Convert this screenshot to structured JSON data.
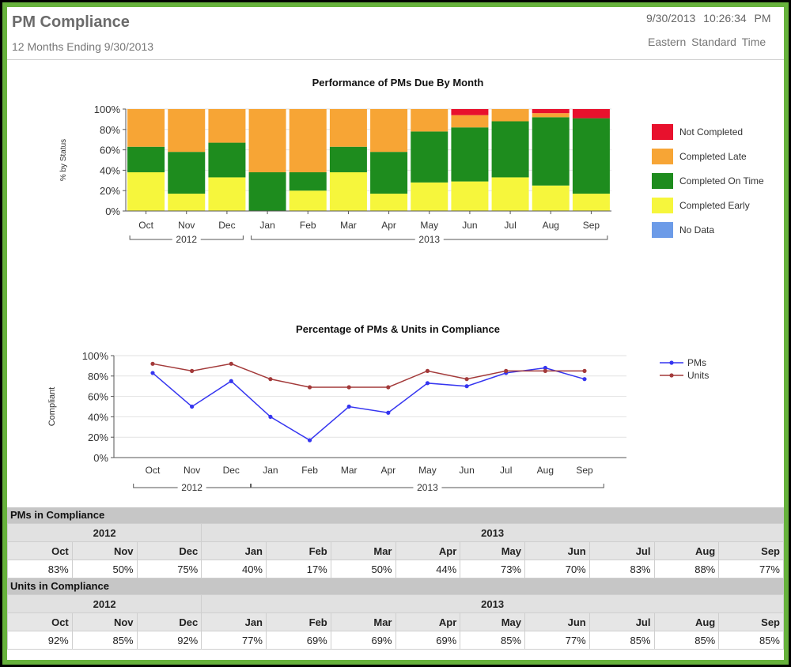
{
  "header": {
    "title": "PM Compliance",
    "subtitle": "12 Months Ending 9/30/2013",
    "datetime": "9/30/2013 10:26:34 PM",
    "timezone": "Eastern Standard Time"
  },
  "chart_data": [
    {
      "type": "bar",
      "stacked": true,
      "title": "Performance of PMs Due By Month",
      "ylabel": "% by Status",
      "xlabel": "",
      "categories": [
        "Oct",
        "Nov",
        "Dec",
        "Jan",
        "Feb",
        "Mar",
        "Apr",
        "May",
        "Jun",
        "Jul",
        "Aug",
        "Sep"
      ],
      "year_groups": [
        {
          "label": "2012",
          "start": 0,
          "end": 2
        },
        {
          "label": "2013",
          "start": 3,
          "end": 11
        }
      ],
      "ylim": [
        0,
        100
      ],
      "yticks": [
        "0%",
        "20%",
        "40%",
        "60%",
        "80%",
        "100%"
      ],
      "legend_position": "right",
      "series": [
        {
          "name": "Not Completed",
          "color": "#e8112d",
          "values": [
            0,
            0,
            0,
            0,
            0,
            0,
            0,
            0,
            6,
            0,
            4,
            9
          ]
        },
        {
          "name": "Completed Late",
          "color": "#f7a535",
          "values": [
            37,
            42,
            33,
            62,
            62,
            37,
            42,
            22,
            12,
            12,
            4,
            0
          ]
        },
        {
          "name": "Completed On Time",
          "color": "#1e8c1e",
          "values": [
            25,
            41,
            34,
            38,
            18,
            25,
            41,
            50,
            53,
            55,
            67,
            74
          ]
        },
        {
          "name": "Completed Early",
          "color": "#f6f63c",
          "values": [
            38,
            17,
            33,
            0,
            20,
            38,
            17,
            28,
            29,
            33,
            25,
            17
          ]
        },
        {
          "name": "No Data",
          "color": "#6c9be8",
          "values": [
            0,
            0,
            0,
            0,
            0,
            0,
            0,
            0,
            0,
            0,
            0,
            0
          ]
        }
      ],
      "grid": true
    },
    {
      "type": "line",
      "title": "Percentage of PMs & Units in Compliance",
      "ylabel": "Compliant",
      "xlabel": "",
      "categories": [
        "Oct",
        "Nov",
        "Dec",
        "Jan",
        "Feb",
        "Mar",
        "Apr",
        "May",
        "Jun",
        "Jul",
        "Aug",
        "Sep"
      ],
      "year_groups": [
        {
          "label": "2012",
          "start": 0,
          "end": 2
        },
        {
          "label": "2013",
          "start": 3,
          "end": 11
        }
      ],
      "ylim": [
        0,
        100
      ],
      "yticks": [
        "0%",
        "20%",
        "40%",
        "60%",
        "80%",
        "100%"
      ],
      "legend_position": "top-right",
      "series": [
        {
          "name": "PMs",
          "color": "#3535f0",
          "values": [
            83,
            50,
            75,
            40,
            17,
            50,
            44,
            73,
            70,
            83,
            88,
            77
          ]
        },
        {
          "name": "Units",
          "color": "#a33a3a",
          "values": [
            92,
            85,
            92,
            77,
            69,
            69,
            69,
            85,
            77,
            85,
            85,
            85
          ]
        }
      ],
      "grid": true
    }
  ],
  "tables": [
    {
      "heading": "PMs in Compliance",
      "years": [
        {
          "label": "2012",
          "span": 3
        },
        {
          "label": "2013",
          "span": 9
        }
      ],
      "months": [
        "Oct",
        "Nov",
        "Dec",
        "Jan",
        "Feb",
        "Mar",
        "Apr",
        "May",
        "Jun",
        "Jul",
        "Aug",
        "Sep"
      ],
      "values": [
        "83%",
        "50%",
        "75%",
        "40%",
        "17%",
        "50%",
        "44%",
        "73%",
        "70%",
        "83%",
        "88%",
        "77%"
      ]
    },
    {
      "heading": "Units in Compliance",
      "years": [
        {
          "label": "2012",
          "span": 3
        },
        {
          "label": "2013",
          "span": 9
        }
      ],
      "months": [
        "Oct",
        "Nov",
        "Dec",
        "Jan",
        "Feb",
        "Mar",
        "Apr",
        "May",
        "Jun",
        "Jul",
        "Aug",
        "Sep"
      ],
      "values": [
        "92%",
        "85%",
        "92%",
        "77%",
        "69%",
        "69%",
        "69%",
        "85%",
        "77%",
        "85%",
        "85%",
        "85%"
      ]
    }
  ]
}
